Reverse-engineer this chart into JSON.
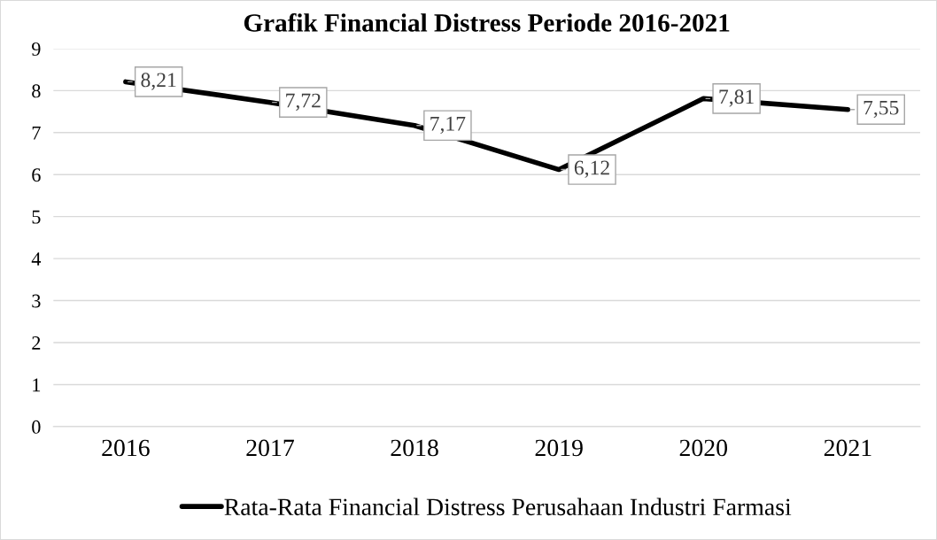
{
  "chart_data": {
    "type": "line",
    "title": "Grafik Financial Distress Periode 2016-2021",
    "categories": [
      "2016",
      "2017",
      "2018",
      "2019",
      "2020",
      "2021"
    ],
    "series": [
      {
        "name": "Rata-Rata Financial Distress Perusahaan Industri Farmasi",
        "color": "#000000",
        "values": [
          8.21,
          7.72,
          7.17,
          6.12,
          7.81,
          7.55
        ]
      }
    ],
    "value_labels": [
      "8,21",
      "7,72",
      "7,17",
      "6,12",
      "7,81",
      "7,55"
    ],
    "ylim": [
      0,
      9
    ],
    "yticks": [
      0,
      1,
      2,
      3,
      4,
      5,
      6,
      7,
      8,
      9
    ],
    "grid": "y",
    "legend": "bottom",
    "marker": "none",
    "line_style": "solid"
  }
}
